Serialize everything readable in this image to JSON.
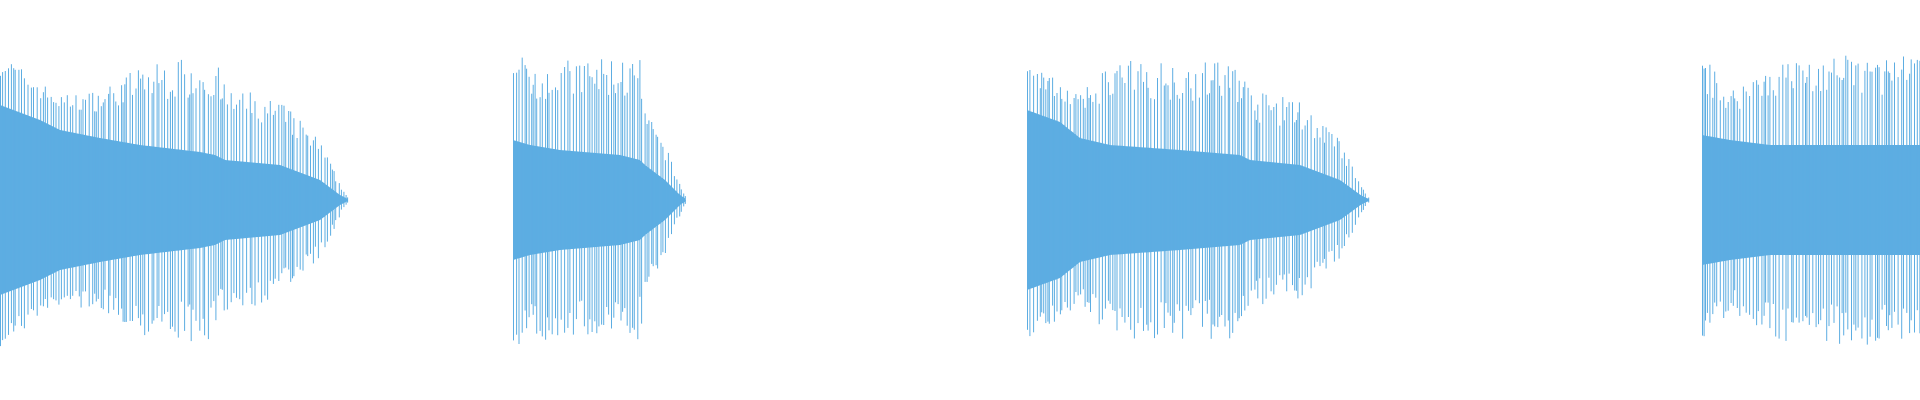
{
  "waveform": {
    "color": "#5dade2",
    "background": "#ffffff",
    "segment_count": 4
  }
}
